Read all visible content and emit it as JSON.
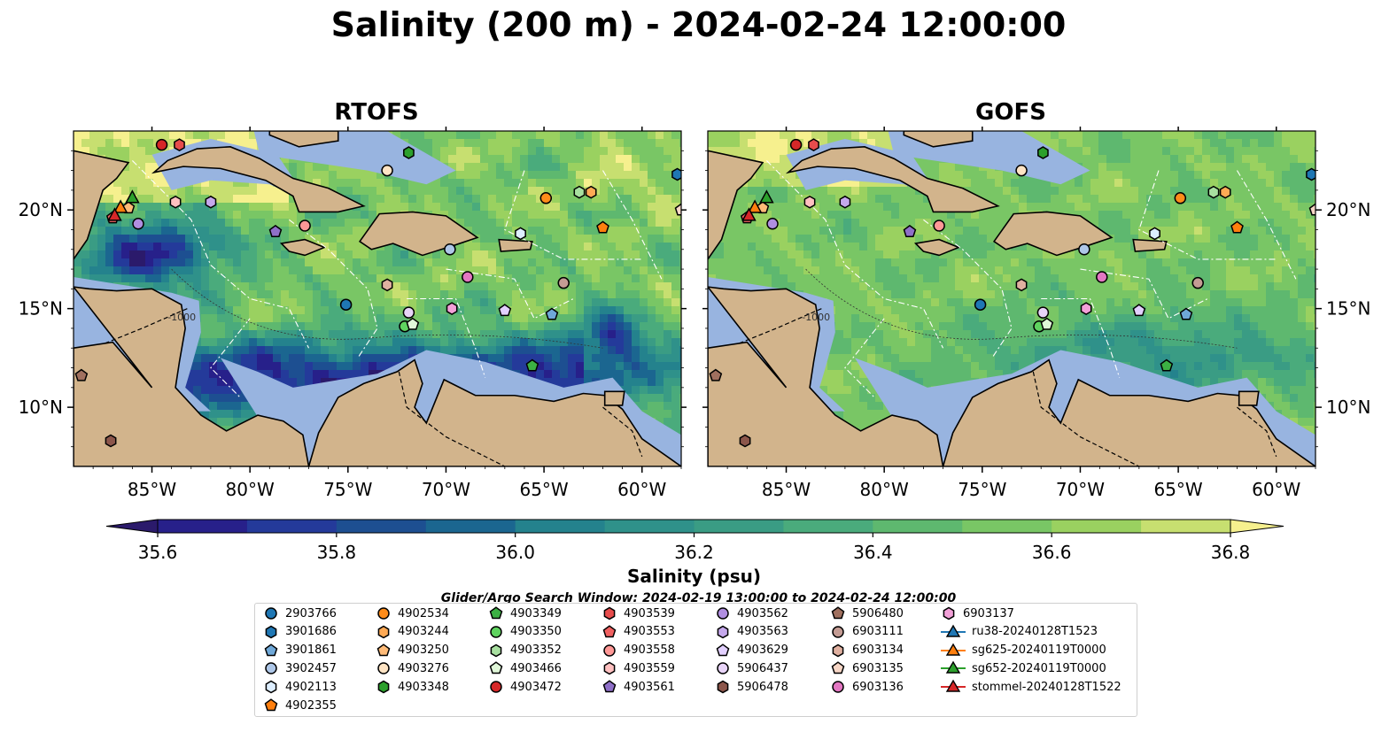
{
  "title": "Salinity (200 m) - 2024-02-24 12:00:00",
  "panels": [
    {
      "title": "RTOFS"
    },
    {
      "title": "GOFS"
    }
  ],
  "axes": {
    "lon_ticks": [
      "85°W",
      "80°W",
      "75°W",
      "70°W",
      "65°W",
      "60°W"
    ],
    "lat_ticks": [
      "20°N",
      "15°N",
      "10°N"
    ],
    "lon_range": [
      -89,
      -58
    ],
    "lat_range": [
      7,
      24
    ],
    "contour_label": "-1000"
  },
  "colorbar": {
    "label": "Salinity (psu)",
    "ticks": [
      "35.6",
      "35.8",
      "36.0",
      "36.2",
      "36.4",
      "36.6",
      "36.8"
    ],
    "vmin": 35.5,
    "vmax": 36.9,
    "step": 0.1,
    "colors": [
      "#2b1a6b",
      "#27208a",
      "#243a9a",
      "#1d4f91",
      "#1b6690",
      "#24828d",
      "#2f918a",
      "#3a9c84",
      "#4aab7c",
      "#5eb86f",
      "#79c665",
      "#9ad160",
      "#c7df70",
      "#f6f08e"
    ],
    "extend": "both"
  },
  "search_window": "Glider/Argo Search Window: 2024-02-19 13:00:00 to 2024-02-24 12:00:00",
  "colors": {
    "land": "#d2b48c",
    "shelf": "#98b4e0",
    "deep_pacific": "#2b1a6b"
  },
  "chart_data": {
    "type": "scatter",
    "x_unit": "longitude (deg)",
    "y_unit": "latitude (deg)",
    "series": [
      {
        "name": "2903766",
        "marker": "circle",
        "color": "#1f77b4",
        "x": -75.1,
        "y": 15.2
      },
      {
        "name": "3901686",
        "marker": "hexagon",
        "color": "#1f77b4",
        "x": -58.2,
        "y": 21.8
      },
      {
        "name": "3901861",
        "marker": "pentagon",
        "color": "#6fa8d8",
        "x": -64.6,
        "y": 14.7
      },
      {
        "name": "3902457",
        "marker": "circle",
        "color": "#aec7e8",
        "x": -69.8,
        "y": 18.0
      },
      {
        "name": "4902113",
        "marker": "hexagon",
        "color": "#ddeeff",
        "x": -66.2,
        "y": 18.8
      },
      {
        "name": "4902355",
        "marker": "pentagon",
        "color": "#ff7f0e",
        "x": -62.0,
        "y": 19.1
      },
      {
        "name": "4902534",
        "marker": "circle",
        "color": "#ff8c1a",
        "x": -64.9,
        "y": 20.6
      },
      {
        "name": "4903244",
        "marker": "hexagon",
        "color": "#ffaa55",
        "x": -62.6,
        "y": 20.9
      },
      {
        "name": "4903250",
        "marker": "pentagon",
        "color": "#ffbb78",
        "x": -86.2,
        "y": 20.1
      },
      {
        "name": "4903276",
        "marker": "circle",
        "color": "#ffe4c4",
        "x": -73.0,
        "y": 22.0
      },
      {
        "name": "4903348",
        "marker": "hexagon",
        "color": "#2ca02c",
        "x": -71.9,
        "y": 22.9
      },
      {
        "name": "4903349",
        "marker": "pentagon",
        "color": "#3cb043",
        "x": -65.6,
        "y": 12.1
      },
      {
        "name": "4903350",
        "marker": "circle",
        "color": "#5fd35f",
        "x": -72.1,
        "y": 14.1
      },
      {
        "name": "4903352",
        "marker": "hexagon",
        "color": "#a8e0a0",
        "x": -63.2,
        "y": 20.9
      },
      {
        "name": "4903466",
        "marker": "pentagon",
        "color": "#e0f7d8",
        "x": -71.7,
        "y": 14.2
      },
      {
        "name": "4903472",
        "marker": "circle",
        "color": "#d62728",
        "x": -84.5,
        "y": 23.3
      },
      {
        "name": "4903539",
        "marker": "hexagon",
        "color": "#e74c4c",
        "x": -83.6,
        "y": 23.3
      },
      {
        "name": "4903553",
        "marker": "pentagon",
        "color": "#f06060",
        "x": -87.0,
        "y": 19.6
      },
      {
        "name": "4903558",
        "marker": "circle",
        "color": "#ff9896",
        "x": -77.2,
        "y": 19.2
      },
      {
        "name": "4903559",
        "marker": "hexagon",
        "color": "#ffc0c0",
        "x": -83.8,
        "y": 20.4
      },
      {
        "name": "4903561",
        "marker": "pentagon",
        "color": "#8f6fc8",
        "x": -78.7,
        "y": 18.9
      },
      {
        "name": "4903562",
        "marker": "circle",
        "color": "#b08ee0",
        "x": -85.7,
        "y": 19.3
      },
      {
        "name": "4903563",
        "marker": "hexagon",
        "color": "#c5a8ec",
        "x": -82.0,
        "y": 20.4
      },
      {
        "name": "4903629",
        "marker": "pentagon",
        "color": "#e2d0ff",
        "x": -67.0,
        "y": 14.9
      },
      {
        "name": "5906437",
        "marker": "circle",
        "color": "#e8d4f8",
        "x": -71.9,
        "y": 14.8
      },
      {
        "name": "5906478",
        "marker": "hexagon",
        "color": "#8c564b",
        "x": -87.1,
        "y": 8.3
      },
      {
        "name": "5906480",
        "marker": "pentagon",
        "color": "#a0705f",
        "x": -88.6,
        "y": 11.6
      },
      {
        "name": "6903111",
        "marker": "circle",
        "color": "#c49c94",
        "x": -64.0,
        "y": 16.3
      },
      {
        "name": "6903134",
        "marker": "hexagon",
        "color": "#e0b0a0",
        "x": -73.0,
        "y": 16.2
      },
      {
        "name": "6903135",
        "marker": "pentagon",
        "color": "#f7d6c6",
        "x": -58.0,
        "y": 20.0
      },
      {
        "name": "6903136",
        "marker": "circle",
        "color": "#e377c2",
        "x": -68.9,
        "y": 16.6
      },
      {
        "name": "6903137",
        "marker": "hexagon",
        "color": "#f2a0d8",
        "x": -69.7,
        "y": 15.0
      },
      {
        "name": "ru38-20240128T1523",
        "marker": "triangle-line",
        "color": "#1f77b4",
        "x": null,
        "y": null
      },
      {
        "name": "sg625-20240119T0000",
        "marker": "triangle-line",
        "color": "#ff7f0e",
        "x": -86.6,
        "y": 20.1
      },
      {
        "name": "sg652-20240119T0000",
        "marker": "triangle-line",
        "color": "#2ca02c",
        "x": -86.0,
        "y": 20.6
      },
      {
        "name": "stommel-20240128T1522",
        "marker": "triangle-line",
        "color": "#d62728",
        "x": -86.9,
        "y": 19.7
      }
    ]
  }
}
